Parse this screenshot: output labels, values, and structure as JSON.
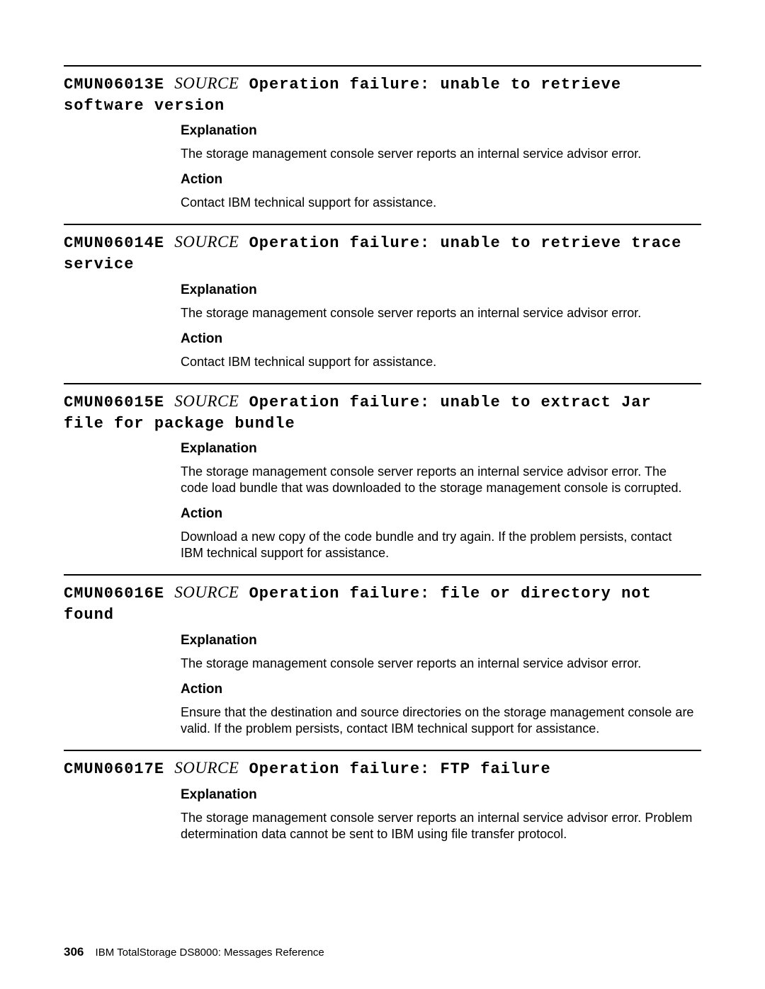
{
  "labels": {
    "explanation": "Explanation",
    "action": "Action",
    "source": "SOURCE"
  },
  "footer": {
    "page_number": "306",
    "book_title": "IBM TotalStorage DS8000: Messages Reference"
  },
  "messages": [
    {
      "code": "CMUN06013E",
      "title": "Operation failure: unable to retrieve software version",
      "explanation": "The storage management console server reports an internal service advisor error.",
      "action": "Contact IBM technical support for assistance."
    },
    {
      "code": "CMUN06014E",
      "title": "Operation failure: unable to retrieve trace service",
      "explanation": "The storage management console server reports an internal service advisor error.",
      "action": "Contact IBM technical support for assistance."
    },
    {
      "code": "CMUN06015E",
      "title": "Operation failure: unable to extract Jar file for package bundle",
      "explanation": "The storage management console server reports an internal service advisor error. The code load bundle that was downloaded to the storage management console is corrupted.",
      "action": "Download a new copy of the code bundle and try again. If the problem persists, contact IBM technical support for assistance."
    },
    {
      "code": "CMUN06016E",
      "title": "Operation failure: file or directory not found",
      "explanation": "The storage management console server reports an internal service advisor error.",
      "action": "Ensure that the destination and source directories on the storage management console are valid. If the problem persists, contact IBM technical support for assistance."
    },
    {
      "code": "CMUN06017E",
      "title": "Operation failure: FTP failure",
      "explanation": "The storage management console server reports an internal service advisor error. Problem determination data cannot be sent to IBM using file transfer protocol.",
      "action": null
    }
  ]
}
